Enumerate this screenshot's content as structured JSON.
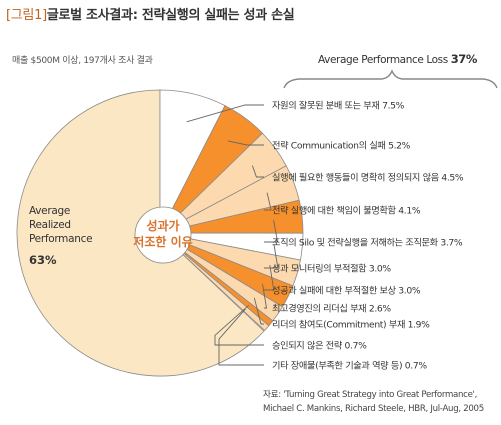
{
  "title": {
    "figure_label": "[그림1]",
    "text": "글로벌 조사결과: 전략실행의 실패는 성과 손실"
  },
  "subtitle": "매출 $500M 이상, 197개사 조사 결과",
  "source": {
    "line1": "자료: 'Turning Great Strategy into Great Performance',",
    "line2": "Michael C. Mankins, Richard Steele, HBR, Jul-Aug, 2005"
  },
  "colors": {
    "realized": "#fbe7c3",
    "dark_orange": "#f6902d",
    "light_peach": "#fcd9ae",
    "white_slice": "#ffffff",
    "outline": "#8a8a8a",
    "bracket": "#888888",
    "center_text": "#d9722a"
  },
  "chart_data": {
    "type": "pie",
    "title": "글로벌 조사결과: 전략실행의 실패는 성과 손실",
    "realized": {
      "label_lines": [
        "Average",
        "Realized",
        "Performance"
      ],
      "value": 63,
      "value_label": "63%"
    },
    "loss": {
      "label_prefix": "Average Performance Loss",
      "value": 37,
      "value_label": "37%",
      "center_label_lines": [
        "성과가",
        "저조한 이유"
      ]
    },
    "slices": [
      {
        "label": "자원의 잘못된 분배 또는 부재",
        "value": 7.5,
        "value_label": "7.5%",
        "color": "#ffffff"
      },
      {
        "label": "전략 Communication의 실패",
        "value": 5.2,
        "value_label": "5.2%",
        "color": "#f6902d"
      },
      {
        "label": "실행에 필요한 행동들이 명확히 정의되지 않음",
        "value": 4.5,
        "value_label": "4.5%",
        "color": "#fcd9ae"
      },
      {
        "label": "전략 실행에 대한 책임이 불명확함",
        "value": 4.1,
        "value_label": "4.1%",
        "color": "#fcd9ae"
      },
      {
        "label": "조직의 Silo 및 전략실행을 저해하는 조직문화",
        "value": 3.7,
        "value_label": "3.7%",
        "color": "#f6902d"
      },
      {
        "label": "성과 모니터링의 부적절함",
        "value": 3.0,
        "value_label": "3.0%",
        "color": "#ffffff"
      },
      {
        "label": "성공과 실패에 대한 부적절한 보상",
        "value": 3.0,
        "value_label": "3.0%",
        "color": "#fcd9ae"
      },
      {
        "label": "최고경영진의 리더십 부재",
        "value": 2.6,
        "value_label": "2.6%",
        "color": "#f6902d"
      },
      {
        "label": "리더의 참여도(Commitment) 부재",
        "value": 1.9,
        "value_label": "1.9%",
        "color": "#fcd9ae"
      },
      {
        "label": "승인되지 않은 전략",
        "value": 0.7,
        "value_label": "0.7%",
        "color": "#f6902d"
      },
      {
        "label": "기타 장애물(부족한 기술과 역량 등)",
        "value": 0.7,
        "value_label": "0.7%",
        "color": "#fcd9ae"
      }
    ]
  }
}
